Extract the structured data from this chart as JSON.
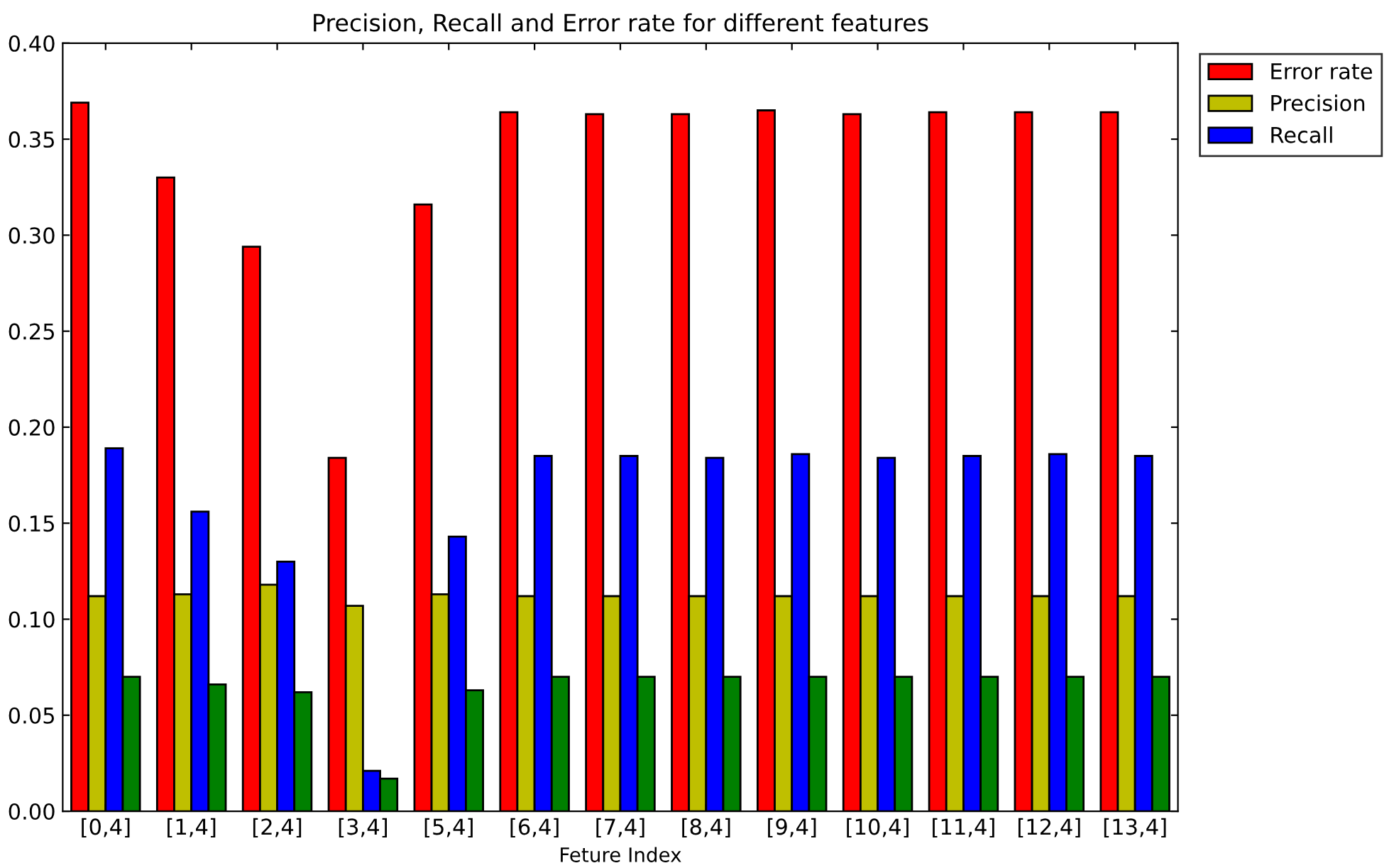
{
  "chart_data": {
    "type": "bar",
    "title": "Precision, Recall and Error rate for different features",
    "xlabel": "Feture Index",
    "categories": [
      "[0,4]",
      "[1,4]",
      "[2,4]",
      "[3,4]",
      "[5,4]",
      "[6,4]",
      "[7,4]",
      "[8,4]",
      "[9,4]",
      "[10,4]",
      "[11,4]",
      "[12,4]",
      "[13,4]"
    ],
    "series": [
      {
        "name": "Error rate",
        "color": "#ff0000",
        "values": [
          0.369,
          0.33,
          0.294,
          0.184,
          0.316,
          0.364,
          0.363,
          0.363,
          0.365,
          0.363,
          0.364,
          0.364,
          0.364
        ]
      },
      {
        "name": "Precision",
        "color": "#bfbf00",
        "values": [
          0.112,
          0.113,
          0.118,
          0.107,
          0.113,
          0.112,
          0.112,
          0.112,
          0.112,
          0.112,
          0.112,
          0.112,
          0.112
        ]
      },
      {
        "name": "Recall",
        "color": "#0000ff",
        "values": [
          0.189,
          0.156,
          0.13,
          0.021,
          0.143,
          0.185,
          0.185,
          0.184,
          0.186,
          0.184,
          0.185,
          0.186,
          0.185
        ]
      },
      {
        "color": "#008000",
        "values": [
          0.07,
          0.066,
          0.062,
          0.017,
          0.063,
          0.07,
          0.07,
          0.07,
          0.07,
          0.07,
          0.07,
          0.07,
          0.07
        ]
      }
    ],
    "ylim": [
      0,
      0.4
    ],
    "yticks": [
      {
        "value": 0,
        "label": "0.00"
      },
      {
        "value": 0.05,
        "label": "0.05"
      },
      {
        "value": 0.1,
        "label": "0.10"
      },
      {
        "value": 0.15,
        "label": "0.15"
      },
      {
        "value": 0.2,
        "label": "0.20"
      },
      {
        "value": 0.25,
        "label": "0.25"
      },
      {
        "value": 0.3,
        "label": "0.30"
      },
      {
        "value": 0.35,
        "label": "0.35"
      },
      {
        "value": 0.4,
        "label": "0.40"
      }
    ],
    "grid": false,
    "legend": "top right"
  }
}
